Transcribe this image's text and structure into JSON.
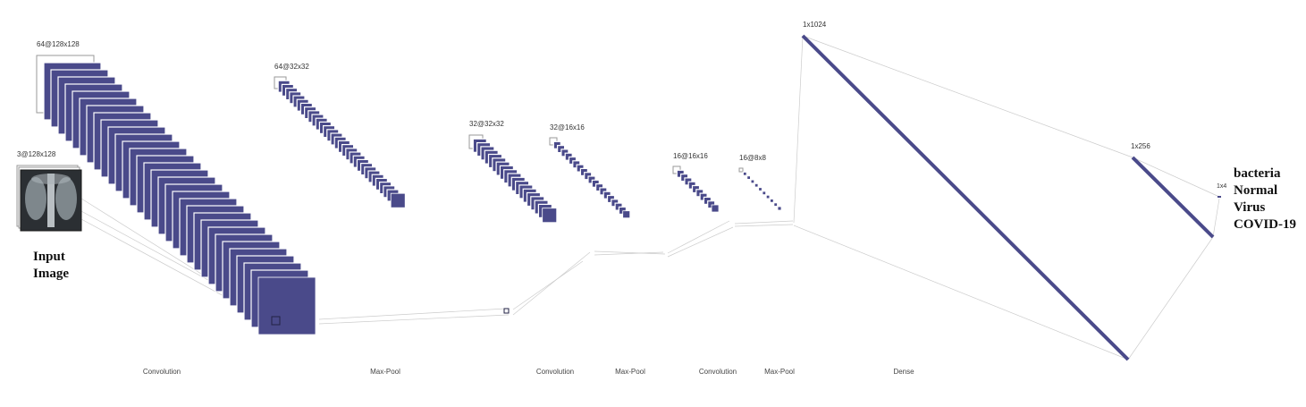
{
  "colors": {
    "fill": "#4a4a8a",
    "back": "#eeeeee",
    "edge": "#999999",
    "line": "#cccccc",
    "dense": "#4a4a8a"
  },
  "input": {
    "label_line1": "Input",
    "label_line2": "Image",
    "shape": "3@128x128",
    "image": "chest-xray"
  },
  "layers": [
    {
      "id": "conv1",
      "shape": "64@128x128",
      "maps": 64,
      "type": "feature-maps"
    },
    {
      "id": "pool1",
      "shape": "64@32x32",
      "maps": 64,
      "type": "feature-maps"
    },
    {
      "id": "conv2",
      "shape": "32@32x32",
      "maps": 32,
      "type": "feature-maps"
    },
    {
      "id": "pool2",
      "shape": "32@16x16",
      "maps": 32,
      "type": "feature-maps"
    },
    {
      "id": "conv3",
      "shape": "16@16x16",
      "maps": 16,
      "type": "feature-maps"
    },
    {
      "id": "pool3",
      "shape": "16@8x8",
      "maps": 16,
      "type": "feature-maps"
    },
    {
      "id": "dense1",
      "shape": "1x1024",
      "type": "dense"
    },
    {
      "id": "dense2",
      "shape": "1x256",
      "type": "dense"
    },
    {
      "id": "out",
      "shape": "1x4",
      "type": "dense"
    }
  ],
  "operations": [
    "Convolution",
    "Max-Pool",
    "Convolution",
    "Max-Pool",
    "Convolution",
    "Max-Pool",
    "Dense"
  ],
  "classes": [
    "bacteria",
    "Normal",
    "Virus",
    "COVID-19"
  ]
}
